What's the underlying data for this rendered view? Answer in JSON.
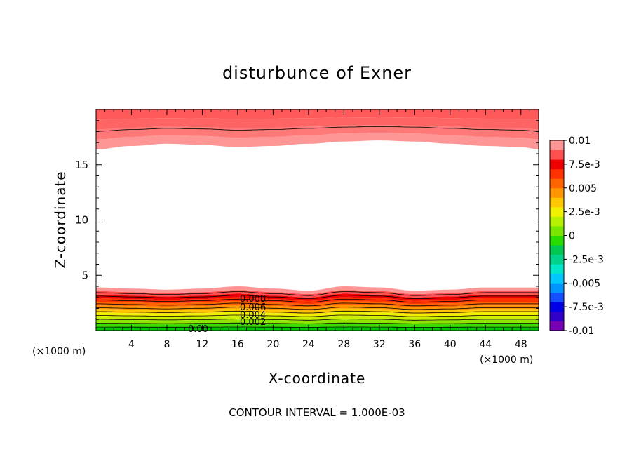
{
  "chart_data": {
    "type": "heatmap",
    "title": "disturbunce of Exner",
    "xlabel": "X-coordinate",
    "ylabel": "Z-coordinate",
    "x_unit_left": "(×1000 m)",
    "x_unit_right": "(×1000 m)",
    "xlim": [
      0,
      50
    ],
    "ylim": [
      0,
      20
    ],
    "x_ticks": [
      4,
      8,
      12,
      16,
      20,
      24,
      28,
      32,
      36,
      40,
      44,
      48
    ],
    "x_tick_labels": [
      "4",
      "8",
      "12",
      "16",
      "20",
      "24",
      "28",
      "32",
      "36",
      "40",
      "44",
      "48"
    ],
    "y_ticks": [
      5,
      10,
      15
    ],
    "y_tick_labels": [
      "5",
      "10",
      "15"
    ],
    "colorbar": {
      "levels": [
        -0.01,
        -0.0075,
        -0.005,
        -0.0025,
        0,
        0.0025,
        0.005,
        0.0075,
        0.01
      ],
      "labels": [
        "-0.01",
        "-7.5e-3",
        "-0.005",
        "-2.5e-3",
        "0",
        "2.5e-3",
        "0.005",
        "7.5e-3",
        "0.01"
      ],
      "colors": [
        "#7a00b4",
        "#3200c8",
        "#0000e6",
        "#1450ff",
        "#0096ff",
        "#00c8ff",
        "#00e6c8",
        "#00d28c",
        "#00c850",
        "#28dc00",
        "#78e600",
        "#b4f000",
        "#f0f000",
        "#ffc800",
        "#ff9600",
        "#ff6400",
        "#ff3200",
        "#f00000",
        "#ff5050",
        "#ff9696"
      ]
    },
    "contour_interval_label": "CONTOUR INTERVAL = 1.000E-03",
    "contour_labels": [
      "0.008",
      "0.006",
      "0.004",
      "0.002",
      "0.00"
    ],
    "series": [
      {
        "region": "lower",
        "x": [
          0,
          4,
          8,
          12,
          16,
          20,
          24,
          28,
          32,
          36,
          40,
          44,
          48,
          50
        ],
        "z_top": [
          3.9,
          3.8,
          3.7,
          3.8,
          4.0,
          3.8,
          3.6,
          4.0,
          3.9,
          3.6,
          3.7,
          3.9,
          3.9,
          3.9
        ]
      },
      {
        "region": "upper",
        "x": [
          0,
          4,
          8,
          12,
          16,
          20,
          24,
          28,
          32,
          36,
          40,
          44,
          48,
          50
        ],
        "z_bottom": [
          16.4,
          16.7,
          16.9,
          16.8,
          16.6,
          16.7,
          16.9,
          17.1,
          17.2,
          17.1,
          16.9,
          16.7,
          16.6,
          16.4
        ]
      }
    ]
  }
}
